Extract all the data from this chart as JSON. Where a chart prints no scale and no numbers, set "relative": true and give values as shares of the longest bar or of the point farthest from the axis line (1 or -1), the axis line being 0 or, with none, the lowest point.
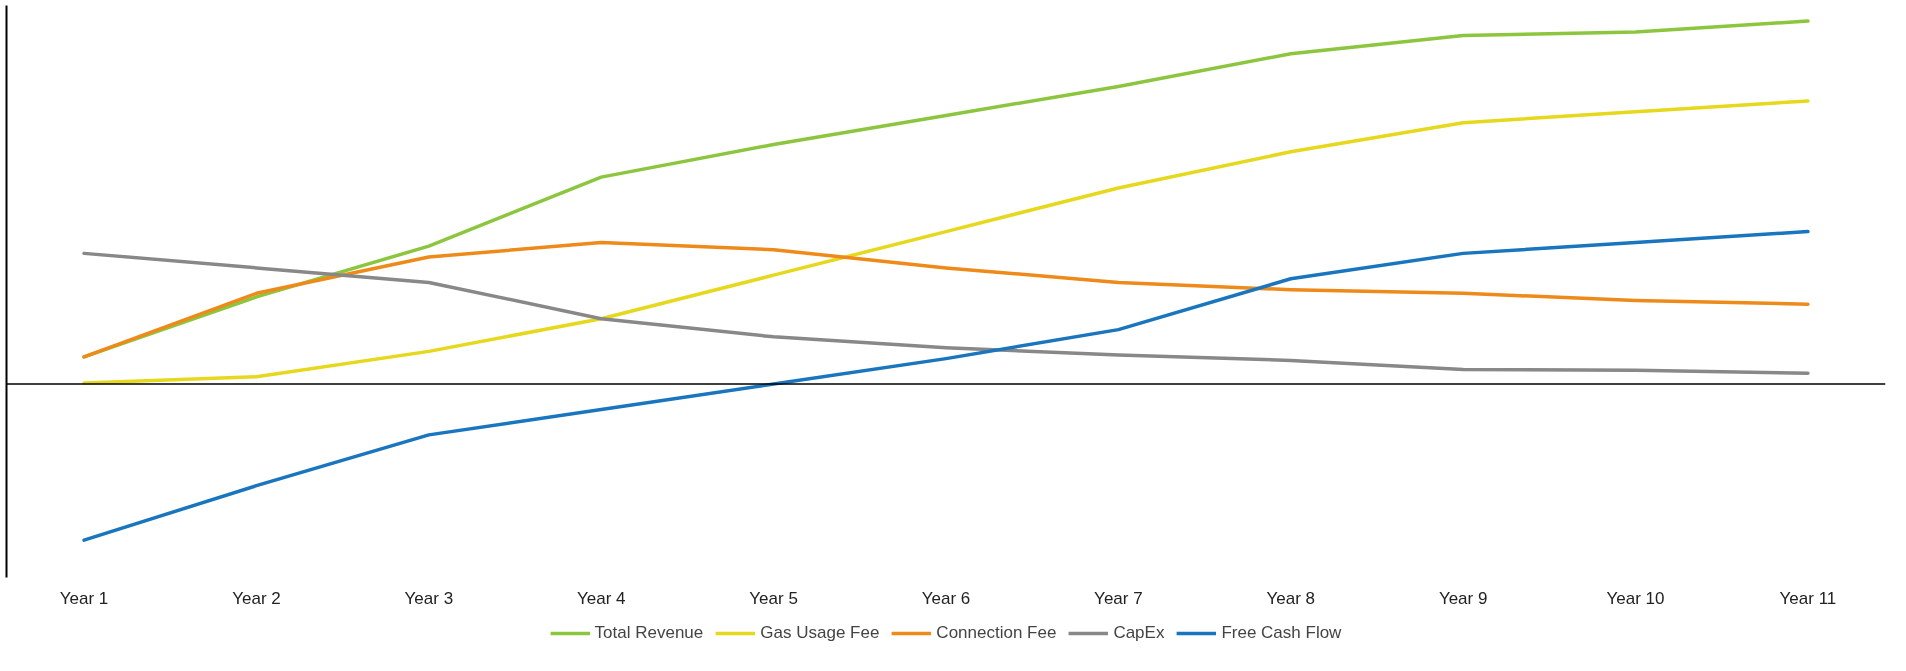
{
  "chart_data": {
    "type": "line",
    "relative": true,
    "legend": "bottom",
    "grid": false,
    "categories": [
      "Year 1",
      "Year 2",
      "Year 3",
      "Year 4",
      "Year 5",
      "Year 6",
      "Year 7",
      "Year 8",
      "Year 9",
      "Year 10",
      "Year 11"
    ],
    "series": [
      {
        "name": "Total Revenue",
        "color": "#8cc63f",
        "values": [
          0.075,
          0.24,
          0.38,
          0.57,
          0.66,
          0.74,
          0.82,
          0.91,
          0.96,
          0.97,
          1
        ]
      },
      {
        "name": "Gas Usage Fee",
        "color": "#e6d81c",
        "values": [
          0.003,
          0.02,
          0.09,
          0.18,
          0.3,
          0.42,
          0.54,
          0.64,
          0.72,
          0.75,
          0.78
        ]
      },
      {
        "name": "Connection Fee",
        "color": "#ee8a1a",
        "values": [
          0.075,
          0.25,
          0.35,
          0.39,
          0.37,
          0.32,
          0.28,
          0.26,
          0.25,
          0.23,
          0.22
        ]
      },
      {
        "name": "CapEx",
        "color": "#888888",
        "values": [
          0.36,
          0.32,
          0.28,
          0.18,
          0.13,
          0.1,
          0.08,
          0.065,
          0.04,
          0.038,
          0.03
        ]
      },
      {
        "name": "Free Cash Flow",
        "color": "#1a75bf",
        "values": [
          -0.43,
          -0.28,
          -0.14,
          -0.07,
          0,
          0.07,
          0.15,
          0.29,
          0.36,
          0.39,
          0.42
        ]
      }
    ]
  }
}
